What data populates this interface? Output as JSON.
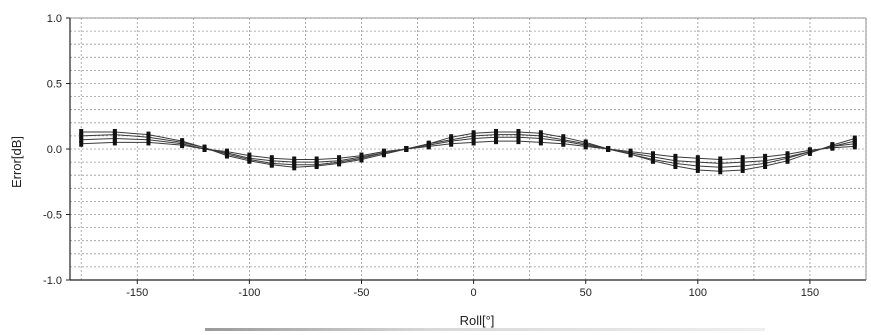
{
  "chart_data": {
    "type": "line",
    "xlabel": "Roll[°]",
    "ylabel": "Error[dB]",
    "xlim": [
      -180,
      175
    ],
    "ylim": [
      -1.0,
      1.0
    ],
    "x_ticks": [
      -150,
      -100,
      -50,
      0,
      50,
      100,
      150
    ],
    "y_ticks": [
      -1.0,
      -0.5,
      0.0,
      0.5,
      1.0
    ],
    "y_tick_labels": [
      "-1.0",
      "-0.5",
      "0.0",
      "0.5",
      "1.0"
    ],
    "grid": true,
    "x": [
      -175,
      -160,
      -145,
      -130,
      -120,
      -110,
      -100,
      -90,
      -80,
      -70,
      -60,
      -50,
      -40,
      -30,
      -20,
      -10,
      0,
      10,
      20,
      30,
      40,
      50,
      60,
      70,
      80,
      90,
      100,
      110,
      120,
      130,
      140,
      150,
      160,
      170
    ],
    "series": [
      {
        "values": [
          0.13,
          0.13,
          0.11,
          0.06,
          0.01,
          -0.05,
          -0.09,
          -0.12,
          -0.14,
          -0.13,
          -0.11,
          -0.08,
          -0.04,
          0.0,
          0.04,
          0.09,
          0.12,
          0.13,
          0.13,
          0.12,
          0.09,
          0.05,
          0.0,
          -0.04,
          -0.09,
          -0.13,
          -0.16,
          -0.17,
          -0.16,
          -0.13,
          -0.09,
          -0.03,
          0.03,
          0.08
        ]
      },
      {
        "values": [
          0.1,
          0.11,
          0.09,
          0.05,
          0.01,
          -0.04,
          -0.08,
          -0.11,
          -0.12,
          -0.12,
          -0.1,
          -0.07,
          -0.03,
          0.0,
          0.04,
          0.07,
          0.1,
          0.11,
          0.11,
          0.1,
          0.07,
          0.04,
          0.0,
          -0.04,
          -0.08,
          -0.11,
          -0.13,
          -0.14,
          -0.13,
          -0.11,
          -0.07,
          -0.02,
          0.02,
          0.06
        ]
      },
      {
        "values": [
          0.07,
          0.08,
          0.07,
          0.04,
          0.0,
          -0.03,
          -0.07,
          -0.09,
          -0.1,
          -0.1,
          -0.09,
          -0.06,
          -0.03,
          0.0,
          0.03,
          0.06,
          0.08,
          0.09,
          0.09,
          0.08,
          0.06,
          0.03,
          0.0,
          -0.03,
          -0.06,
          -0.09,
          -0.1,
          -0.11,
          -0.1,
          -0.09,
          -0.06,
          -0.02,
          0.02,
          0.04
        ]
      },
      {
        "values": [
          0.04,
          0.05,
          0.05,
          0.03,
          0.0,
          -0.02,
          -0.05,
          -0.07,
          -0.08,
          -0.08,
          -0.07,
          -0.05,
          -0.02,
          0.0,
          0.02,
          0.04,
          0.05,
          0.06,
          0.06,
          0.05,
          0.04,
          0.02,
          0.0,
          -0.02,
          -0.04,
          -0.06,
          -0.07,
          -0.08,
          -0.07,
          -0.06,
          -0.04,
          -0.01,
          0.01,
          0.02
        ]
      }
    ]
  }
}
